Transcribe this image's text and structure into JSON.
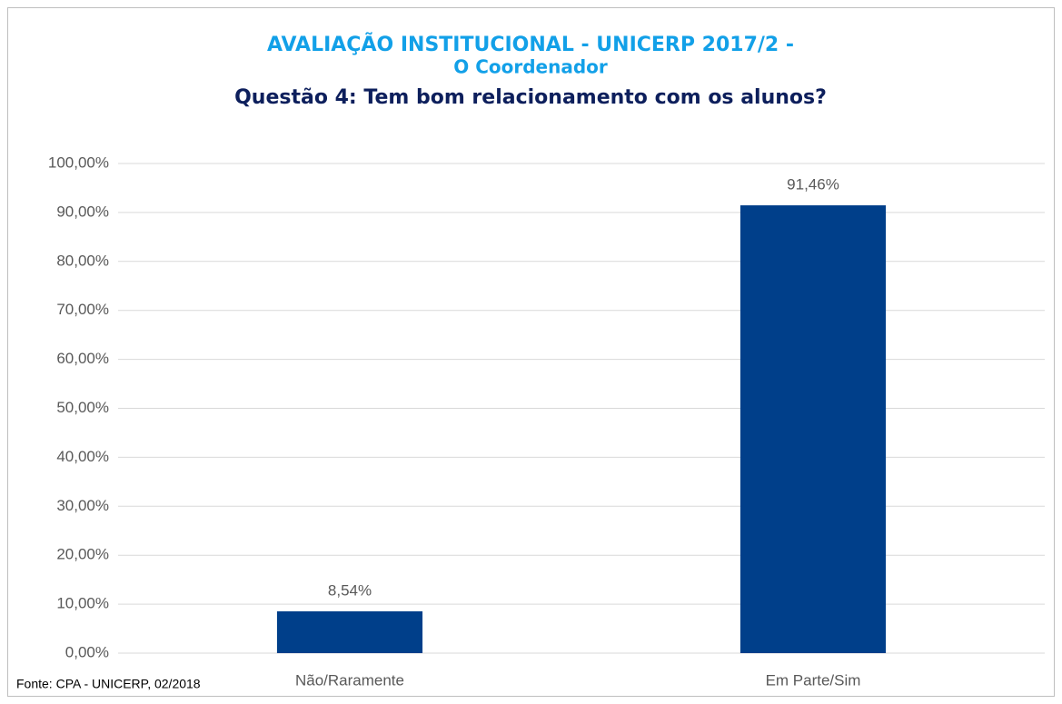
{
  "chart_data": {
    "type": "bar",
    "title": "AVALIAÇÃO INSTITUCIONAL - UNICERP 2017/2 -",
    "subtitle": "O Coordenador",
    "question": "Questão 4: Tem bom relacionamento com os alunos?",
    "source": "Fonte: CPA - UNICERP, 02/2018",
    "categories": [
      "Não/Raramente",
      "Em Parte/Sim"
    ],
    "values": [
      8.54,
      91.46
    ],
    "value_labels": [
      "8,54%",
      "91,46%"
    ],
    "color": "#003f8a",
    "ylim": [
      0,
      100
    ],
    "yticks": [
      {
        "value": 0,
        "label": "0,00%"
      },
      {
        "value": 10,
        "label": "10,00%"
      },
      {
        "value": 20,
        "label": "20,00%"
      },
      {
        "value": 30,
        "label": "30,00%"
      },
      {
        "value": 40,
        "label": "40,00%"
      },
      {
        "value": 50,
        "label": "50,00%"
      },
      {
        "value": 60,
        "label": "60,00%"
      },
      {
        "value": 70,
        "label": "70,00%"
      },
      {
        "value": 80,
        "label": "80,00%"
      },
      {
        "value": 90,
        "label": "90,00%"
      },
      {
        "value": 100,
        "label": "100,00%"
      }
    ],
    "grid": true
  }
}
